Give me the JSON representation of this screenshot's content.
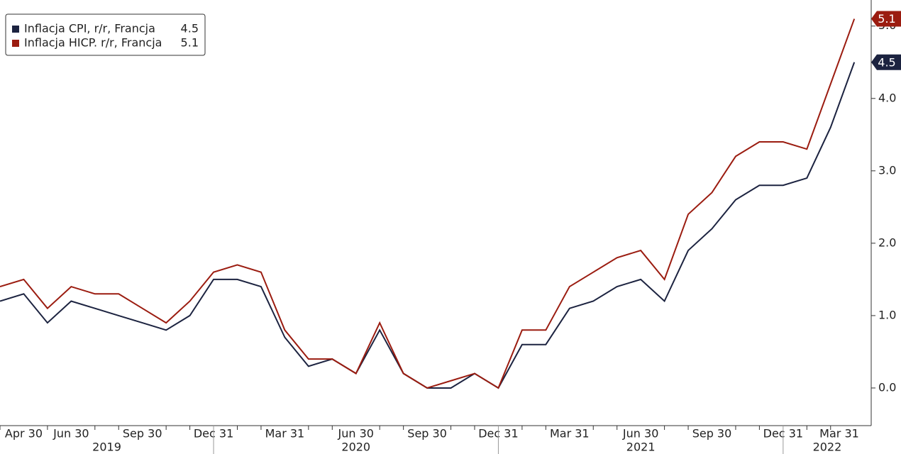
{
  "chart_data": {
    "type": "line",
    "x": [
      "2019-03-31",
      "2019-04-30",
      "2019-05-31",
      "2019-06-30",
      "2019-07-31",
      "2019-08-31",
      "2019-09-30",
      "2019-10-31",
      "2019-11-30",
      "2019-12-31",
      "2020-01-31",
      "2020-02-29",
      "2020-03-31",
      "2020-04-30",
      "2020-05-31",
      "2020-06-30",
      "2020-07-31",
      "2020-08-31",
      "2020-09-30",
      "2020-10-31",
      "2020-11-30",
      "2020-12-31",
      "2021-01-31",
      "2021-02-28",
      "2021-03-31",
      "2021-04-30",
      "2021-05-31",
      "2021-06-30",
      "2021-07-31",
      "2021-08-31",
      "2021-09-30",
      "2021-10-31",
      "2021-11-30",
      "2021-12-31",
      "2022-01-31",
      "2022-02-28",
      "2022-03-31"
    ],
    "series": [
      {
        "name": "Inflacja CPI, r/r, Francja",
        "color": "#1c2340",
        "values": [
          1.2,
          1.3,
          0.9,
          1.2,
          1.1,
          1.0,
          0.9,
          0.8,
          1.0,
          1.5,
          1.5,
          1.4,
          0.7,
          0.3,
          0.4,
          0.2,
          0.8,
          0.2,
          0.0,
          0.0,
          0.2,
          0.0,
          0.6,
          0.6,
          1.1,
          1.2,
          1.4,
          1.5,
          1.2,
          1.9,
          2.2,
          2.6,
          2.8,
          2.8,
          2.9,
          3.6,
          4.5
        ]
      },
      {
        "name": "Inflacja HICP. r/r, Francja",
        "color": "#9b1c10",
        "values": [
          1.4,
          1.5,
          1.1,
          1.4,
          1.3,
          1.3,
          1.1,
          0.9,
          1.2,
          1.6,
          1.7,
          1.6,
          0.8,
          0.4,
          0.4,
          0.2,
          0.9,
          0.2,
          0.0,
          0.1,
          0.2,
          0.0,
          0.8,
          0.8,
          1.4,
          1.6,
          1.8,
          1.9,
          1.5,
          2.4,
          2.7,
          3.2,
          3.4,
          3.4,
          3.3,
          4.2,
          5.1
        ]
      }
    ],
    "xticks": [
      {
        "value": "2019-04-30",
        "label": "Apr 30"
      },
      {
        "value": "2019-06-30",
        "label": "Jun 30"
      },
      {
        "value": "2019-09-30",
        "label": "Sep 30"
      },
      {
        "value": "2019-12-31",
        "label": "Dec 31"
      },
      {
        "value": "2020-03-31",
        "label": "Mar 31"
      },
      {
        "value": "2020-06-30",
        "label": "Jun 30"
      },
      {
        "value": "2020-09-30",
        "label": "Sep 30"
      },
      {
        "value": "2020-12-31",
        "label": "Dec 31"
      },
      {
        "value": "2021-03-31",
        "label": "Mar 31"
      },
      {
        "value": "2021-06-30",
        "label": "Jun 30"
      },
      {
        "value": "2021-09-30",
        "label": "Sep 30"
      },
      {
        "value": "2021-12-31",
        "label": "Dec 31"
      },
      {
        "value": "2022-03-31",
        "label": "Mar 31"
      }
    ],
    "years": [
      "2019",
      "2020",
      "2021",
      "2022"
    ],
    "ylim": [
      -0.52,
      5.36
    ],
    "yticks": [
      {
        "value": 0,
        "label": "0.0"
      },
      {
        "value": 1,
        "label": "1.0"
      },
      {
        "value": 2,
        "label": "2.0"
      },
      {
        "value": 3,
        "label": "3.0"
      },
      {
        "value": 4,
        "label": "4.0"
      },
      {
        "value": 5,
        "label": "5.0"
      }
    ]
  }
}
